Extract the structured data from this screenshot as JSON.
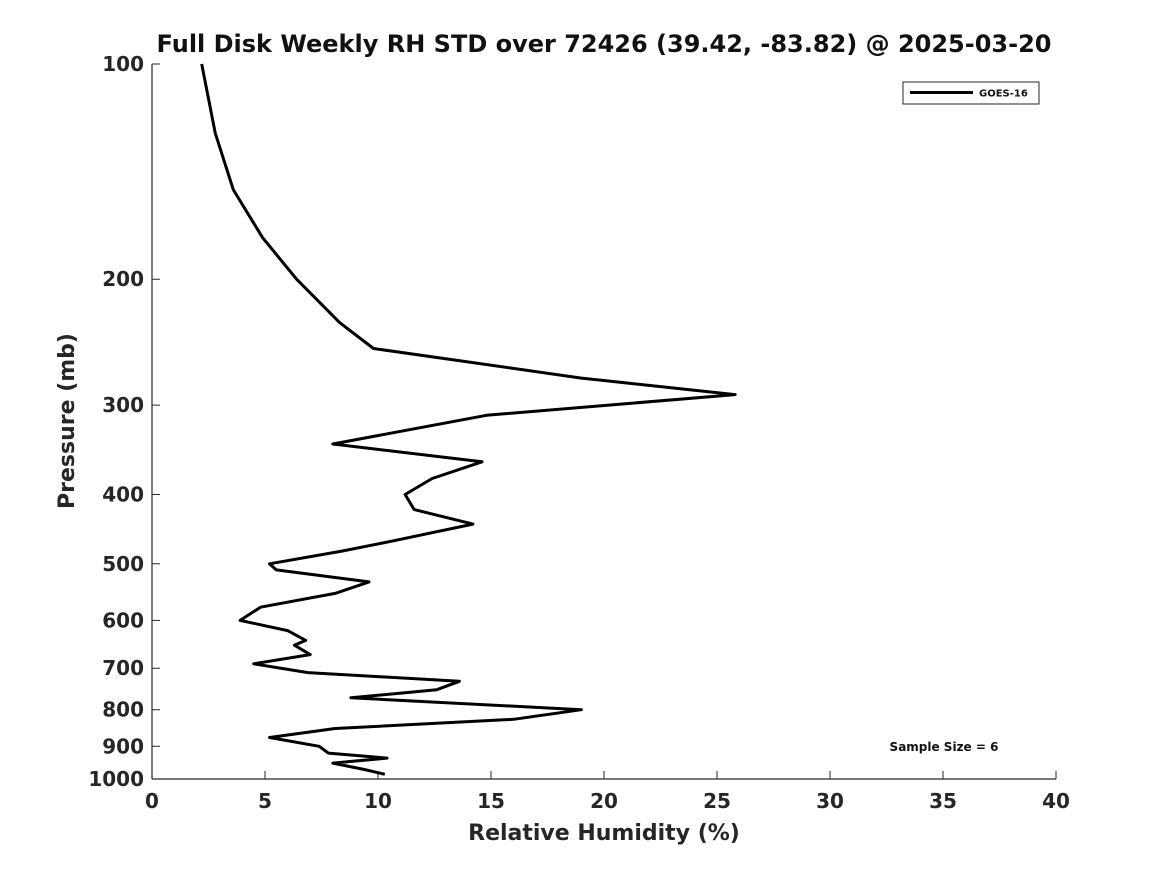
{
  "chart_data": {
    "type": "line",
    "title": "Full Disk Weekly RH STD over 72426 (39.42, -83.82) @ 2025-03-20",
    "xlabel": "Relative Humidity (%)",
    "ylabel": "Pressure (mb)",
    "xlim": [
      0,
      40
    ],
    "ylim": [
      100,
      1000
    ],
    "yscale": "log",
    "reverse_y": true,
    "grid": false,
    "x_ticks": [
      0,
      5,
      10,
      15,
      20,
      25,
      30,
      35,
      40
    ],
    "x_tick_labels": [
      "0",
      "5",
      "10",
      "15",
      "20",
      "25",
      "30",
      "35",
      "40"
    ],
    "y_ticks": [
      100,
      200,
      300,
      400,
      500,
      600,
      700,
      800,
      900,
      1000
    ],
    "y_tick_labels": [
      "100",
      "200",
      "300",
      "400",
      "500",
      "600",
      "700",
      "800",
      "900",
      "1000"
    ],
    "legend": {
      "position": "top-right",
      "entries": [
        "GOES-16"
      ]
    },
    "annotation": "Sample Size = 6",
    "series": [
      {
        "name": "GOES-16",
        "color": "#000000",
        "points": [
          [
            2.2,
            100
          ],
          [
            2.8,
            125
          ],
          [
            3.6,
            150
          ],
          [
            4.9,
            175
          ],
          [
            6.4,
            200
          ],
          [
            8.3,
            230
          ],
          [
            9.8,
            250
          ],
          [
            19.0,
            275
          ],
          [
            25.8,
            290
          ],
          [
            14.8,
            310
          ],
          [
            8.0,
            340
          ],
          [
            14.6,
            360
          ],
          [
            12.4,
            380
          ],
          [
            11.2,
            400
          ],
          [
            11.6,
            420
          ],
          [
            14.2,
            440
          ],
          [
            10.6,
            465
          ],
          [
            8.4,
            480
          ],
          [
            5.2,
            500
          ],
          [
            5.5,
            510
          ],
          [
            9.6,
            530
          ],
          [
            8.1,
            550
          ],
          [
            4.8,
            575
          ],
          [
            3.9,
            600
          ],
          [
            6.0,
            620
          ],
          [
            6.8,
            640
          ],
          [
            6.3,
            650
          ],
          [
            7.0,
            670
          ],
          [
            4.5,
            690
          ],
          [
            6.9,
            710
          ],
          [
            13.6,
            730
          ],
          [
            12.6,
            750
          ],
          [
            8.8,
            770
          ],
          [
            19.0,
            800
          ],
          [
            16.0,
            825
          ],
          [
            8.1,
            850
          ],
          [
            5.2,
            875
          ],
          [
            7.4,
            900
          ],
          [
            7.8,
            920
          ],
          [
            10.4,
            935
          ],
          [
            8.0,
            950
          ],
          [
            9.4,
            970
          ],
          [
            10.3,
            985
          ]
        ]
      }
    ]
  }
}
